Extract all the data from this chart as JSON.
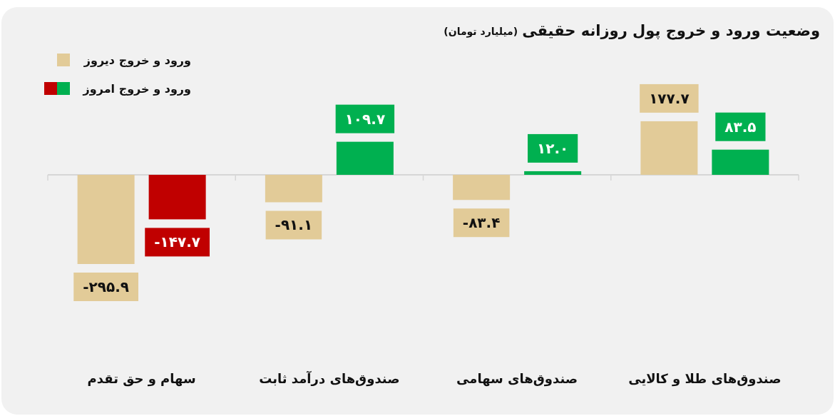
{
  "chart_data": {
    "type": "bar",
    "title": "وضعیت ورود و خروج پول روزانه حقیقی",
    "subtitle": "(میلیارد تومان)",
    "categories": [
      "سهام و حق تقدم",
      "صندوق‌های درآمد ثابت",
      "صندوق‌های سهامی",
      "صندوق‌های طلا و کالایی"
    ],
    "legend": "top left",
    "series": [
      {
        "name": "ورود و خروج دیروز",
        "color": "#e2cb98",
        "values": [
          -295.9,
          -91.1,
          -83.4,
          177.7
        ],
        "value_labels": [
          "-۲۹۵.۹",
          "-۹۱.۱",
          "-۸۳.۴",
          "۱۷۷.۷"
        ]
      },
      {
        "name": "ورود و خروج امروز",
        "colors": [
          "#c00000",
          "#00b050",
          "#00b050",
          "#00b050"
        ],
        "values": [
          -147.7,
          109.7,
          12.0,
          83.5
        ],
        "value_labels": [
          "-۱۴۷.۷",
          "۱۰۹.۷",
          "۱۲.۰",
          "۸۳.۵"
        ]
      }
    ]
  }
}
